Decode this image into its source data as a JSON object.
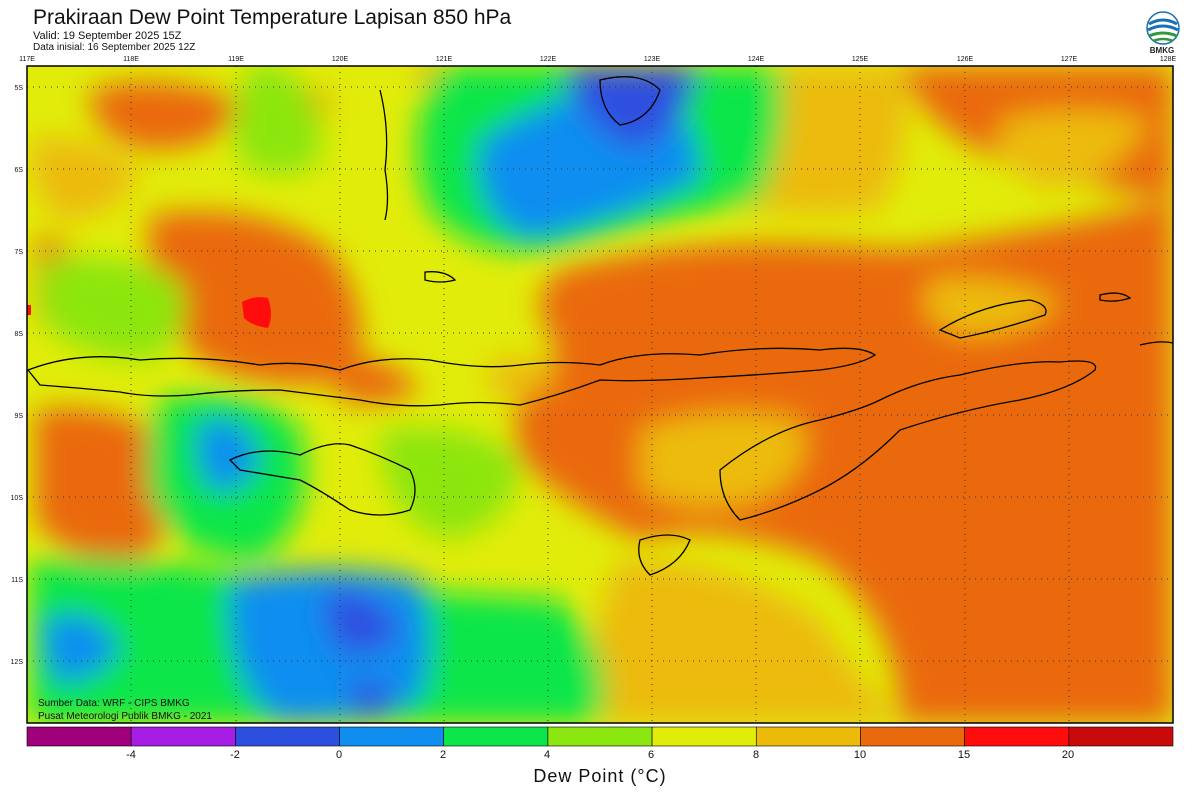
{
  "header": {
    "title": "Prakiraan Dew Point Temperature Lapisan 850 hPa",
    "valid": "Valid: 19 September 2025 15Z",
    "initial": "Data inisial: 16 September 2025 12Z"
  },
  "logo": {
    "text": "BMKG",
    "icon": "bmkg-logo-icon"
  },
  "map": {
    "lon_labels": [
      "117E",
      "118E",
      "119E",
      "120E",
      "121E",
      "122E",
      "123E",
      "124E",
      "125E",
      "126E",
      "127E",
      "128E"
    ],
    "lat_labels": [
      "5S",
      "6S",
      "7S",
      "8S",
      "9S",
      "10S",
      "11S",
      "12S"
    ],
    "lon_range": [
      117,
      128
    ],
    "lat_range": [
      -4.8,
      -12.8
    ],
    "grid": "dotted"
  },
  "credits": {
    "line1": "Sumber Data: WRF - CIPS BMKG",
    "line2": "Pusat Meteorologi Publik BMKG - 2021"
  },
  "colorbar": {
    "label": "Dew Point (°C)",
    "ticks": [
      "-4",
      "-2",
      "0",
      "2",
      "4",
      "6",
      "8",
      "10",
      "15",
      "20"
    ],
    "colors": [
      "#a0007a",
      "#a61ee6",
      "#2d4fe0",
      "#0f8ef0",
      "#0de64a",
      "#8ce60f",
      "#e1ec0a",
      "#ecbb0a",
      "#ea690c",
      "#ff0d0d",
      "#c80a0a"
    ]
  }
}
